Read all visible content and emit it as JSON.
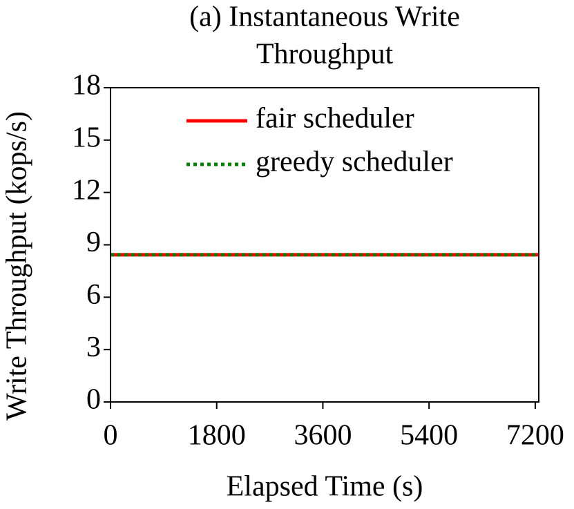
{
  "chart_data": {
    "type": "line",
    "title": [
      "(a) Instantaneous Write",
      "Throughput"
    ],
    "x_label": "Elapsed Time (s)",
    "y_label": "Write Throughput (kops/s)",
    "x": [
      0,
      7250
    ],
    "series": [
      {
        "name": "fair scheduler",
        "color": "#ff0000",
        "style": "solid",
        "values": [
          8.43,
          8.43
        ]
      },
      {
        "name": "greedy scheduler",
        "color": "#008000",
        "style": "dotted",
        "values": [
          8.43,
          8.43
        ]
      }
    ],
    "xlim": [
      0,
      7260
    ],
    "xticks": [
      0,
      1800,
      3600,
      5400,
      7200
    ],
    "ylim": [
      0,
      18
    ],
    "yticks": [
      0,
      3,
      6,
      9,
      12,
      15,
      18
    ],
    "legend": "upper right",
    "grid": false
  }
}
